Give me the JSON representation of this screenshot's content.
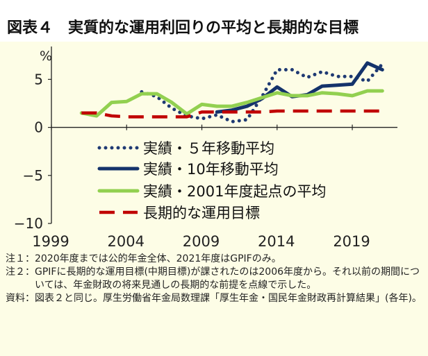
{
  "title": "図表４　実質的な運用利回りの平均と長期的な目標",
  "chart_data": {
    "type": "line",
    "title": "図表４　実質的な運用利回りの平均と長期的な目標",
    "unit_label": "%",
    "xlabel": "",
    "ylabel": "%",
    "xlim": [
      1999,
      2022
    ],
    "ylim": [
      -10,
      9
    ],
    "x_ticks": [
      1999,
      2004,
      2009,
      2014,
      2019
    ],
    "x_tick_labels": [
      "1999",
      "2004",
      "2009",
      "2014",
      "2019"
    ],
    "y_ticks": [
      5,
      0,
      -5,
      -10
    ],
    "y_tick_labels": [
      "5",
      "0",
      "−5",
      "−10"
    ],
    "grid": false,
    "legend_position": "lower-left",
    "series": [
      {
        "name": "実績・５年移動平均",
        "style": "dotted",
        "color": "#1f3a73",
        "points": [
          [
            2005,
            3.7
          ],
          [
            2006,
            3.2
          ],
          [
            2007,
            2.0
          ],
          [
            2008,
            1.2
          ],
          [
            2009,
            0.9
          ],
          [
            2010,
            1.3
          ],
          [
            2011,
            0.6
          ],
          [
            2012,
            0.8
          ],
          [
            2013,
            3.2
          ],
          [
            2014,
            6.0
          ],
          [
            2015,
            6.0
          ],
          [
            2016,
            5.2
          ],
          [
            2017,
            5.8
          ],
          [
            2018,
            5.3
          ],
          [
            2019,
            5.3
          ],
          [
            2020,
            4.8
          ],
          [
            2021,
            6.6
          ]
        ]
      },
      {
        "name": "実績・10年移動平均",
        "style": "solid",
        "color": "#14336b",
        "points": [
          [
            2010,
            1.6
          ],
          [
            2011,
            1.8
          ],
          [
            2012,
            2.2
          ],
          [
            2013,
            3.0
          ],
          [
            2014,
            4.2
          ],
          [
            2015,
            3.2
          ],
          [
            2016,
            3.4
          ],
          [
            2017,
            4.3
          ],
          [
            2018,
            4.4
          ],
          [
            2019,
            4.5
          ],
          [
            2020,
            6.7
          ],
          [
            2021,
            6.0
          ]
        ]
      },
      {
        "name": "実績・2001年度起点の平均",
        "style": "solid",
        "color": "#92d050",
        "points": [
          [
            2001,
            1.5
          ],
          [
            2002,
            1.2
          ],
          [
            2003,
            2.6
          ],
          [
            2004,
            2.7
          ],
          [
            2005,
            3.5
          ],
          [
            2006,
            3.5
          ],
          [
            2007,
            2.6
          ],
          [
            2008,
            1.4
          ],
          [
            2009,
            2.4
          ],
          [
            2010,
            2.2
          ],
          [
            2011,
            2.2
          ],
          [
            2012,
            2.6
          ],
          [
            2013,
            3.1
          ],
          [
            2014,
            3.6
          ],
          [
            2015,
            3.3
          ],
          [
            2016,
            3.3
          ],
          [
            2017,
            3.6
          ],
          [
            2018,
            3.5
          ],
          [
            2019,
            3.3
          ],
          [
            2020,
            3.8
          ],
          [
            2021,
            3.8
          ]
        ]
      },
      {
        "name": "長期的な運用目標",
        "style": "dashed",
        "color": "#c00000",
        "points": [
          [
            2001,
            1.5
          ],
          [
            2002,
            1.5
          ],
          [
            2003,
            1.2
          ],
          [
            2004,
            1.1
          ],
          [
            2005,
            1.1
          ],
          [
            2006,
            1.1
          ],
          [
            2007,
            1.1
          ],
          [
            2008,
            1.1
          ],
          [
            2009,
            1.6
          ],
          [
            2010,
            1.6
          ],
          [
            2011,
            1.6
          ],
          [
            2012,
            1.6
          ],
          [
            2013,
            1.6
          ],
          [
            2014,
            1.7
          ],
          [
            2015,
            1.7
          ],
          [
            2016,
            1.7
          ],
          [
            2017,
            1.7
          ],
          [
            2018,
            1.7
          ],
          [
            2019,
            1.7
          ],
          [
            2020,
            1.7
          ],
          [
            2021,
            1.7
          ]
        ]
      }
    ]
  },
  "notes": [
    {
      "label": "注１：",
      "text": "2020年度までは公的年金全体、2021年度はGPIFのみ。"
    },
    {
      "label": "注２：",
      "text": "GPIFに長期的な運用目標(中期目標)が課されたのは2006年度から。それ以前の期間については、年金財政の将来見通しの長期的な前提を点線で示した。"
    },
    {
      "label": "資料：",
      "text": "図表２と同じ。厚生労働省年金局数理課「厚生年金・国民年金財政再計算結果」(各年)。"
    }
  ]
}
